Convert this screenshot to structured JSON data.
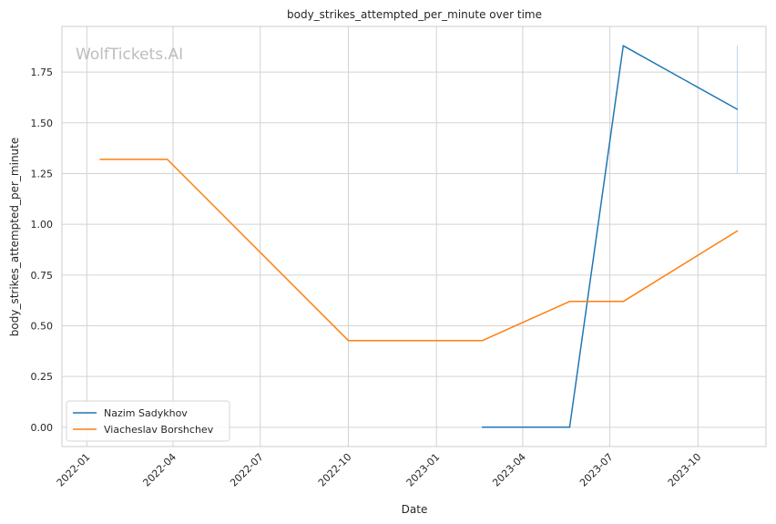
{
  "chart_data": {
    "type": "line",
    "title": "body_strikes_attempted_per_minute over time",
    "xlabel": "Date",
    "ylabel": "body_strikes_attempted_per_minute",
    "watermark": "WolfTickets.AI",
    "x_ticks": [
      "2022-01",
      "2022-04",
      "2022-07",
      "2022-10",
      "2023-01",
      "2023-04",
      "2023-07",
      "2023-10"
    ],
    "y_ticks": [
      "0.00",
      "0.25",
      "0.50",
      "0.75",
      "1.00",
      "1.25",
      "1.50",
      "1.75"
    ],
    "xlim": [
      "2021-12-06",
      "2023-12-11"
    ],
    "ylim": [
      -0.095,
      1.975
    ],
    "grid": true,
    "legend_position": "lower-left",
    "series": [
      {
        "name": "Nazim Sadykhov",
        "color": "#1f77b4",
        "x": [
          "2023-02-18",
          "2023-05-20",
          "2023-07-15",
          "2023-11-11"
        ],
        "y": [
          0.0,
          0.0,
          1.88,
          1.567
        ]
      },
      {
        "name": "Viacheslav Borshchev",
        "color": "#ff7f0e",
        "x": [
          "2022-01-15",
          "2022-03-26",
          "2022-10-01",
          "2023-02-18",
          "2023-05-20",
          "2023-07-15",
          "2023-11-11"
        ],
        "y": [
          1.32,
          1.32,
          0.427,
          0.427,
          0.62,
          0.62,
          0.967
        ]
      }
    ],
    "error_band": {
      "x": "2023-11-11",
      "y_low": 1.25,
      "y_high": 1.88,
      "color": "#a6cee3"
    }
  }
}
